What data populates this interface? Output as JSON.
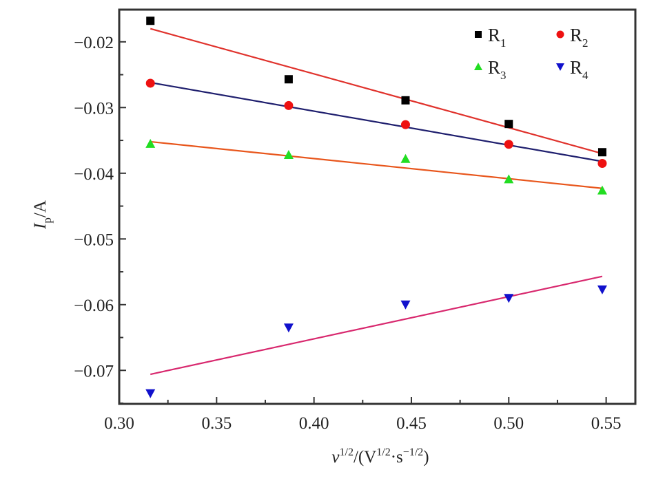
{
  "chart_data": {
    "type": "scatter",
    "title": "",
    "xlabel": {
      "symbol": "v",
      "sup1": "1/2",
      "unit_open": "/(V",
      "sup2": "1/2",
      "dot_s": "·s",
      "sup3": "−1/2",
      "close": ")"
    },
    "ylabel": {
      "symbol": "I",
      "sub": "p",
      "unit": "/A"
    },
    "xlim": [
      0.3,
      0.565
    ],
    "ylim": [
      -0.0751,
      -0.0151
    ],
    "x_ticks": [
      0.3,
      0.35,
      0.4,
      0.45,
      0.5,
      0.55
    ],
    "x_tick_labels": [
      "0.30",
      "0.35",
      "0.40",
      "0.45",
      "0.50",
      "0.55"
    ],
    "y_ticks": [
      -0.02,
      -0.03,
      -0.04,
      -0.05,
      -0.06,
      -0.07
    ],
    "y_tick_labels": [
      "−0.02",
      "−0.03",
      "−0.04",
      "−0.05",
      "−0.06",
      "−0.07"
    ],
    "grid": false,
    "legend_position": "top-right",
    "x": [
      0.316,
      0.387,
      0.447,
      0.5,
      0.548
    ],
    "series": [
      {
        "name": "R",
        "sub": "1",
        "marker": "square",
        "color": "#000000",
        "values": [
          -0.0168,
          -0.0257,
          -0.0289,
          -0.0325,
          -0.0368
        ],
        "fit": {
          "color": "#e0322c",
          "y_start": -0.018,
          "y_end": -0.037
        }
      },
      {
        "name": "R",
        "sub": "2",
        "marker": "circle",
        "color": "#ee1111",
        "values": [
          -0.0263,
          -0.0297,
          -0.0326,
          -0.0356,
          -0.0385
        ],
        "fit": {
          "color": "#1f1f6e",
          "y_start": -0.0262,
          "y_end": -0.0382
        }
      },
      {
        "name": "R",
        "sub": "3",
        "marker": "triangle-up",
        "color": "#22dd22",
        "values": [
          -0.0355,
          -0.0372,
          -0.0378,
          -0.0409,
          -0.0426
        ],
        "fit": {
          "color": "#e8561c",
          "y_start": -0.0352,
          "y_end": -0.0423
        }
      },
      {
        "name": "R",
        "sub": "4",
        "marker": "triangle-down",
        "color": "#1111cc",
        "values": [
          -0.0735,
          -0.0635,
          -0.06,
          -0.059,
          -0.0577
        ],
        "fit": {
          "color": "#d8286e",
          "y_start": -0.0706,
          "y_end": -0.0557
        }
      }
    ]
  }
}
